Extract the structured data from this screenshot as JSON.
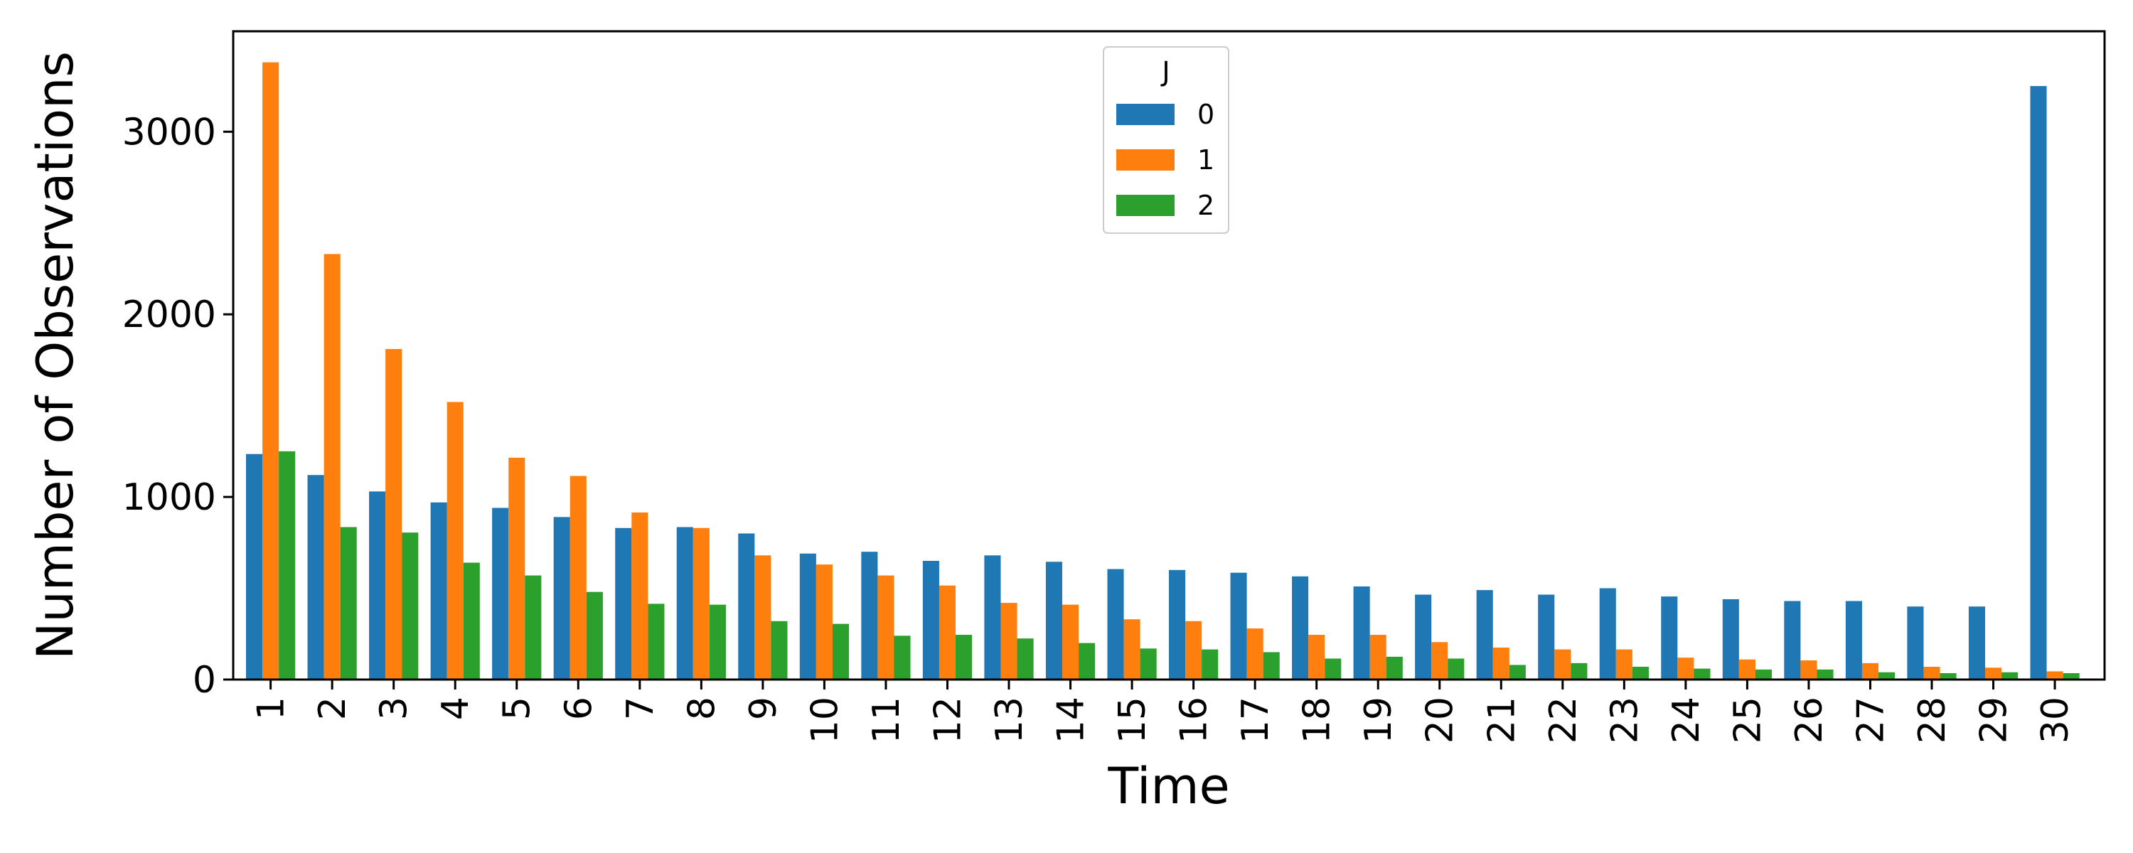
{
  "chart_data": {
    "type": "bar",
    "title": "",
    "xlabel": "Time",
    "ylabel": "Number of Observations",
    "categories": [
      "1",
      "2",
      "3",
      "4",
      "5",
      "6",
      "7",
      "8",
      "9",
      "10",
      "11",
      "12",
      "13",
      "14",
      "15",
      "16",
      "17",
      "18",
      "19",
      "20",
      "21",
      "22",
      "23",
      "24",
      "25",
      "26",
      "27",
      "28",
      "29",
      "30"
    ],
    "series": [
      {
        "name": "0",
        "color": "#1f77b4",
        "values": [
          1235,
          1120,
          1030,
          970,
          940,
          890,
          830,
          835,
          800,
          690,
          700,
          650,
          680,
          645,
          605,
          600,
          585,
          565,
          510,
          465,
          490,
          465,
          500,
          455,
          440,
          430,
          430,
          400,
          400,
          3250
        ]
      },
      {
        "name": "1",
        "color": "#ff7f0e",
        "values": [
          3380,
          2330,
          1810,
          1520,
          1215,
          1115,
          915,
          830,
          680,
          630,
          570,
          515,
          420,
          410,
          330,
          320,
          280,
          245,
          245,
          205,
          175,
          165,
          165,
          120,
          110,
          105,
          90,
          70,
          65,
          45
        ]
      },
      {
        "name": "2",
        "color": "#2ca02c",
        "values": [
          1250,
          835,
          805,
          640,
          570,
          480,
          415,
          410,
          320,
          305,
          240,
          245,
          225,
          200,
          170,
          165,
          150,
          115,
          125,
          115,
          80,
          90,
          70,
          60,
          55,
          55,
          40,
          35,
          40,
          35
        ]
      }
    ],
    "ylim": [
      0,
      3550
    ],
    "yticks": [
      0,
      1000,
      2000,
      3000
    ],
    "grid": false,
    "legend": {
      "title": "J",
      "position": "top-center"
    }
  }
}
